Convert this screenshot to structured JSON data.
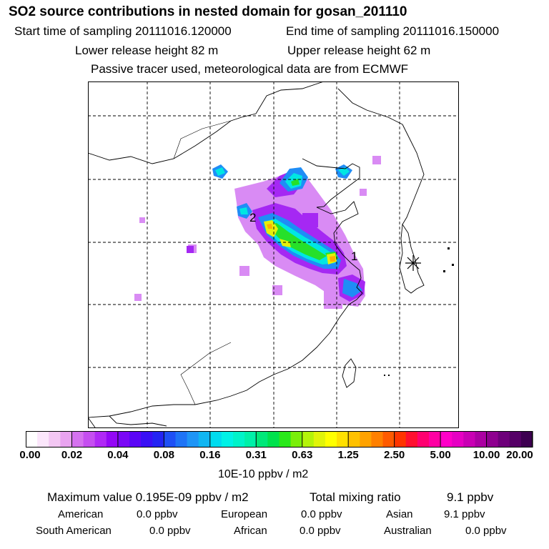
{
  "header": {
    "title": "SO2 source contributions in nested domain for gosan_201110",
    "start_label": "Start time of sampling 20111016.120000",
    "end_label": "End time of sampling 20111016.150000",
    "lower_label": "Lower release height   82 m",
    "upper_label": "Upper release height   62 m",
    "tracer_note": "Passive tracer used, meteorological data are from ECMWF"
  },
  "chart_data": {
    "type": "heatmap",
    "title": "SO2 source contributions in nested domain for gosan_201110",
    "colorbar": {
      "unit": "10E-10 ppbv / m2",
      "tick_labels": [
        "0.00",
        "0.02",
        "0.04",
        "0.08",
        "0.16",
        "0.31",
        "0.63",
        "1.25",
        "2.50",
        "5.00",
        "10.00",
        "20.00"
      ],
      "colors": [
        "#ffffff",
        "#fbe6fb",
        "#f3c7f3",
        "#e9a4f0",
        "#d572ef",
        "#c54ff0",
        "#b029f5",
        "#9407f6",
        "#7a08f6",
        "#5b06f6",
        "#3a10f5",
        "#2424f3",
        "#1f50f5",
        "#1f74f6",
        "#1f95f6",
        "#11b6f2",
        "#00dcef",
        "#00f2e6",
        "#00f3c9",
        "#00f0a8",
        "#00e879",
        "#00e24d",
        "#2ae81a",
        "#7aee0a",
        "#b4f30a",
        "#e0f40a",
        "#ffff00",
        "#ffe000",
        "#ffc100",
        "#ffa200",
        "#ff8000",
        "#ff5a00",
        "#ff3500",
        "#ff1030",
        "#ff0070",
        "#ff00a3",
        "#ff00c8",
        "#e600c3",
        "#c900b4",
        "#ab00a2",
        "#8e008f",
        "#6e007a",
        "#550066",
        "#3d0050"
      ]
    },
    "markers": [
      {
        "label": "1",
        "name": "gosan receptor-adjacent marker"
      },
      {
        "label": "2",
        "name": "secondary source marker"
      }
    ],
    "receptor": {
      "symbol": "✳",
      "name": "gosan receptor"
    },
    "grid": true
  },
  "summary": {
    "max_label": "Maximum value  0.195E-09 ppbv / m2",
    "total_label": "Total mixing ratio",
    "total_value": "9.1 ppbv",
    "regions": [
      {
        "name": "American",
        "value": "0.0 ppbv"
      },
      {
        "name": "European",
        "value": "0.0 ppbv"
      },
      {
        "name": "Asian",
        "value": "9.1 ppbv"
      },
      {
        "name": "South American",
        "value": "0.0 ppbv"
      },
      {
        "name": "African",
        "value": "0.0 ppbv"
      },
      {
        "name": "Australian",
        "value": "0.0 ppbv"
      }
    ]
  }
}
